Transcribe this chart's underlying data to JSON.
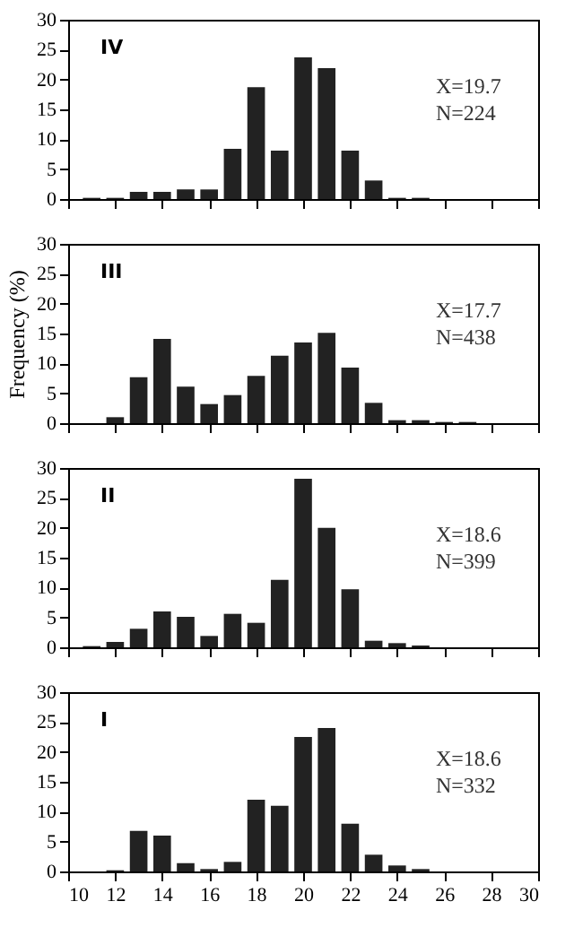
{
  "chart_data": [
    {
      "type": "histogram",
      "title": "IV",
      "bins": [
        10.5,
        11.5,
        12.5,
        13.5,
        14.5,
        15.5,
        16.5,
        17.5,
        18.5,
        19.5,
        20.5,
        21.5,
        22.5,
        23.5,
        24.5,
        25.5,
        26.5,
        27.5
      ],
      "values": [
        0.2,
        0.2,
        1.2,
        1.2,
        1.6,
        1.6,
        8.4,
        18.7,
        8.1,
        23.7,
        21.9,
        8.1,
        3.1,
        0.2,
        0.2,
        0,
        0
      ],
      "color": "#222222",
      "xlim": [
        10,
        30
      ],
      "xticks": [
        10,
        12,
        14,
        16,
        18,
        20,
        22,
        24,
        26,
        28,
        30
      ],
      "ylim": [
        0,
        30
      ],
      "yticks": [
        0,
        5,
        10,
        15,
        20,
        25,
        30
      ],
      "tick_labels": "y",
      "grid": false,
      "annotations": [
        "X=19.7",
        "N=224"
      ]
    },
    {
      "type": "histogram",
      "title": "III",
      "ylabel": "Frequency (%)",
      "bins": [
        10.5,
        11.5,
        12.5,
        13.5,
        14.5,
        15.5,
        16.5,
        17.5,
        18.5,
        19.5,
        20.5,
        21.5,
        22.5,
        23.5,
        24.5,
        25.5,
        26.5,
        27.5
      ],
      "values": [
        0,
        1.0,
        7.7,
        14.1,
        6.1,
        3.2,
        4.7,
        7.9,
        11.3,
        13.5,
        15.1,
        9.3,
        3.4,
        0.5,
        0.5,
        0.2,
        0.2
      ],
      "color": "#222222",
      "xlim": [
        10,
        30
      ],
      "xticks": [
        10,
        12,
        14,
        16,
        18,
        20,
        22,
        24,
        26,
        28,
        30
      ],
      "ylim": [
        0,
        30
      ],
      "yticks": [
        0,
        5,
        10,
        15,
        20,
        25,
        30
      ],
      "tick_labels": "y",
      "grid": false,
      "annotations": [
        "X=17.7",
        "N=438"
      ]
    },
    {
      "type": "histogram",
      "title": "II",
      "bins": [
        10.5,
        11.5,
        12.5,
        13.5,
        14.5,
        15.5,
        16.5,
        17.5,
        18.5,
        19.5,
        20.5,
        21.5,
        22.5,
        23.5,
        24.5,
        25.5,
        26.5,
        27.5
      ],
      "values": [
        0.2,
        0.9,
        3.1,
        6.0,
        5.1,
        1.9,
        5.6,
        4.1,
        11.3,
        28.2,
        20.0,
        9.7,
        1.1,
        0.7,
        0.3,
        0,
        0
      ],
      "color": "#222222",
      "xlim": [
        10,
        30
      ],
      "xticks": [
        10,
        12,
        14,
        16,
        18,
        20,
        22,
        24,
        26,
        28,
        30
      ],
      "ylim": [
        0,
        30
      ],
      "yticks": [
        0,
        5,
        10,
        15,
        20,
        25,
        30
      ],
      "tick_labels": "y",
      "grid": false,
      "annotations": [
        "X=18.6",
        "N=399"
      ]
    },
    {
      "type": "histogram",
      "title": "I",
      "bins": [
        10.5,
        11.5,
        12.5,
        13.5,
        14.5,
        15.5,
        16.5,
        17.5,
        18.5,
        19.5,
        20.5,
        21.5,
        22.5,
        23.5,
        24.5,
        25.5,
        26.5,
        27.5
      ],
      "values": [
        0,
        0.2,
        6.8,
        6.0,
        1.4,
        0.4,
        1.6,
        12.0,
        11.0,
        22.5,
        24.0,
        8.0,
        2.8,
        1.0,
        0.4,
        0,
        0
      ],
      "color": "#222222",
      "xlim": [
        10,
        30
      ],
      "xticks": [
        10,
        12,
        14,
        16,
        18,
        20,
        22,
        24,
        26,
        28,
        30
      ],
      "ylim": [
        0,
        30
      ],
      "yticks": [
        0,
        5,
        10,
        15,
        20,
        25,
        30
      ],
      "grid": false,
      "annotations": [
        "X=18.6",
        "N=332"
      ]
    }
  ]
}
